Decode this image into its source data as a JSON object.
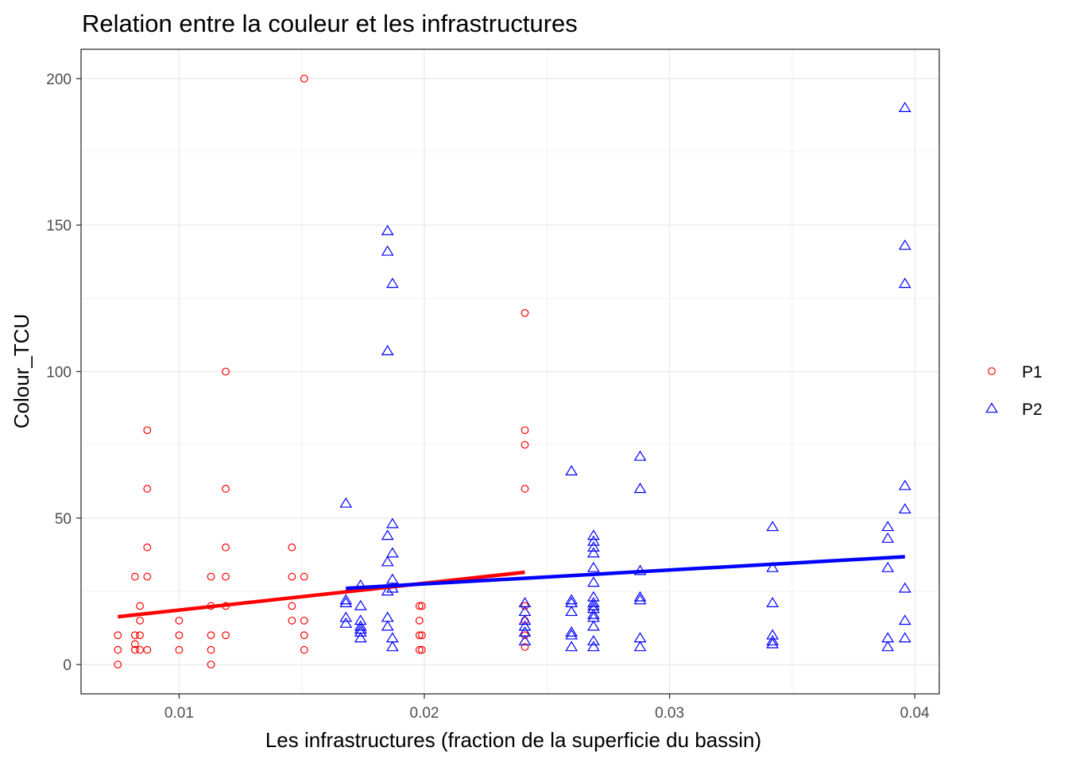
{
  "chart_data": {
    "type": "scatter",
    "title": "Relation entre la couleur et les infrastructures",
    "xlabel": "Les infrastructures (fraction de la superficie du bassin)",
    "ylabel": "Colour_TCU",
    "xlim": [
      0.006,
      0.041
    ],
    "ylim": [
      -10,
      210
    ],
    "xticks": [
      {
        "value": 0.01,
        "label": "0.01"
      },
      {
        "value": 0.02,
        "label": "0.02"
      },
      {
        "value": 0.03,
        "label": "0.03"
      },
      {
        "value": 0.04,
        "label": "0.04"
      }
    ],
    "yticks": [
      {
        "value": 0,
        "label": "0"
      },
      {
        "value": 50,
        "label": "50"
      },
      {
        "value": 100,
        "label": "100"
      },
      {
        "value": 150,
        "label": "150"
      },
      {
        "value": 200,
        "label": "200"
      }
    ],
    "grid": true,
    "legend_position": "right",
    "series": [
      {
        "name": "P1",
        "color": "#ff0000",
        "marker": "circle",
        "points": [
          [
            0.0075,
            0
          ],
          [
            0.0075,
            5
          ],
          [
            0.0075,
            10
          ],
          [
            0.0082,
            5
          ],
          [
            0.0082,
            7
          ],
          [
            0.0082,
            10
          ],
          [
            0.0082,
            30
          ],
          [
            0.0084,
            5
          ],
          [
            0.0084,
            10
          ],
          [
            0.0084,
            15
          ],
          [
            0.0084,
            20
          ],
          [
            0.0087,
            5
          ],
          [
            0.0087,
            30
          ],
          [
            0.0087,
            40
          ],
          [
            0.0087,
            60
          ],
          [
            0.0087,
            80
          ],
          [
            0.01,
            5
          ],
          [
            0.01,
            10
          ],
          [
            0.01,
            15
          ],
          [
            0.0113,
            0
          ],
          [
            0.0113,
            5
          ],
          [
            0.0113,
            10
          ],
          [
            0.0113,
            20
          ],
          [
            0.0113,
            30
          ],
          [
            0.0119,
            10
          ],
          [
            0.0119,
            20
          ],
          [
            0.0119,
            30
          ],
          [
            0.0119,
            40
          ],
          [
            0.0119,
            60
          ],
          [
            0.0119,
            100
          ],
          [
            0.0146,
            15
          ],
          [
            0.0146,
            20
          ],
          [
            0.0146,
            30
          ],
          [
            0.0146,
            40
          ],
          [
            0.0151,
            5
          ],
          [
            0.0151,
            10
          ],
          [
            0.0151,
            15
          ],
          [
            0.0151,
            30
          ],
          [
            0.0151,
            200
          ],
          [
            0.0198,
            5
          ],
          [
            0.0198,
            10
          ],
          [
            0.0198,
            15
          ],
          [
            0.0198,
            20
          ],
          [
            0.0199,
            5
          ],
          [
            0.0199,
            10
          ],
          [
            0.0199,
            20
          ],
          [
            0.0241,
            6
          ],
          [
            0.0241,
            10
          ],
          [
            0.0241,
            15
          ],
          [
            0.0241,
            20
          ],
          [
            0.0241,
            60
          ],
          [
            0.0241,
            75
          ],
          [
            0.0241,
            80
          ],
          [
            0.0241,
            120
          ]
        ],
        "trend": {
          "x": [
            0.0075,
            0.0241
          ],
          "y": [
            16.3,
            31.5
          ]
        }
      },
      {
        "name": "P2",
        "color": "#0000ff",
        "marker": "triangle",
        "points": [
          [
            0.0168,
            14
          ],
          [
            0.0168,
            16
          ],
          [
            0.0168,
            21
          ],
          [
            0.0168,
            22
          ],
          [
            0.0168,
            55
          ],
          [
            0.0174,
            9
          ],
          [
            0.0174,
            11
          ],
          [
            0.0174,
            12
          ],
          [
            0.0174,
            13
          ],
          [
            0.0174,
            15
          ],
          [
            0.0174,
            20
          ],
          [
            0.0174,
            27
          ],
          [
            0.0185,
            13
          ],
          [
            0.0185,
            16
          ],
          [
            0.0185,
            25
          ],
          [
            0.0185,
            35
          ],
          [
            0.0185,
            44
          ],
          [
            0.0185,
            107
          ],
          [
            0.0185,
            141
          ],
          [
            0.0185,
            148
          ],
          [
            0.0187,
            6
          ],
          [
            0.0187,
            9
          ],
          [
            0.0187,
            26
          ],
          [
            0.0187,
            29
          ],
          [
            0.0187,
            38
          ],
          [
            0.0187,
            48
          ],
          [
            0.0187,
            130
          ],
          [
            0.0241,
            8
          ],
          [
            0.0241,
            11
          ],
          [
            0.0241,
            13
          ],
          [
            0.0241,
            15
          ],
          [
            0.0241,
            18
          ],
          [
            0.0241,
            21
          ],
          [
            0.026,
            6
          ],
          [
            0.026,
            10
          ],
          [
            0.026,
            11
          ],
          [
            0.026,
            18
          ],
          [
            0.026,
            21
          ],
          [
            0.026,
            22
          ],
          [
            0.026,
            66
          ],
          [
            0.0269,
            6
          ],
          [
            0.0269,
            8
          ],
          [
            0.0269,
            13
          ],
          [
            0.0269,
            16
          ],
          [
            0.0269,
            17
          ],
          [
            0.0269,
            19
          ],
          [
            0.0269,
            20
          ],
          [
            0.0269,
            21
          ],
          [
            0.0269,
            23
          ],
          [
            0.0269,
            28
          ],
          [
            0.0269,
            33
          ],
          [
            0.0269,
            38
          ],
          [
            0.0269,
            40
          ],
          [
            0.0269,
            42
          ],
          [
            0.0269,
            44
          ],
          [
            0.0288,
            6
          ],
          [
            0.0288,
            9
          ],
          [
            0.0288,
            22
          ],
          [
            0.0288,
            23
          ],
          [
            0.0288,
            32
          ],
          [
            0.0288,
            60
          ],
          [
            0.0288,
            71
          ],
          [
            0.0342,
            7
          ],
          [
            0.0342,
            8
          ],
          [
            0.0342,
            10
          ],
          [
            0.0342,
            21
          ],
          [
            0.0342,
            33
          ],
          [
            0.0342,
            47
          ],
          [
            0.0389,
            6
          ],
          [
            0.0389,
            9
          ],
          [
            0.0389,
            33
          ],
          [
            0.0389,
            43
          ],
          [
            0.0389,
            47
          ],
          [
            0.0396,
            9
          ],
          [
            0.0396,
            15
          ],
          [
            0.0396,
            26
          ],
          [
            0.0396,
            53
          ],
          [
            0.0396,
            61
          ],
          [
            0.0396,
            130
          ],
          [
            0.0396,
            143
          ],
          [
            0.0396,
            190
          ]
        ],
        "trend": {
          "x": [
            0.0168,
            0.0396
          ],
          "y": [
            26,
            36.8
          ]
        }
      }
    ]
  }
}
